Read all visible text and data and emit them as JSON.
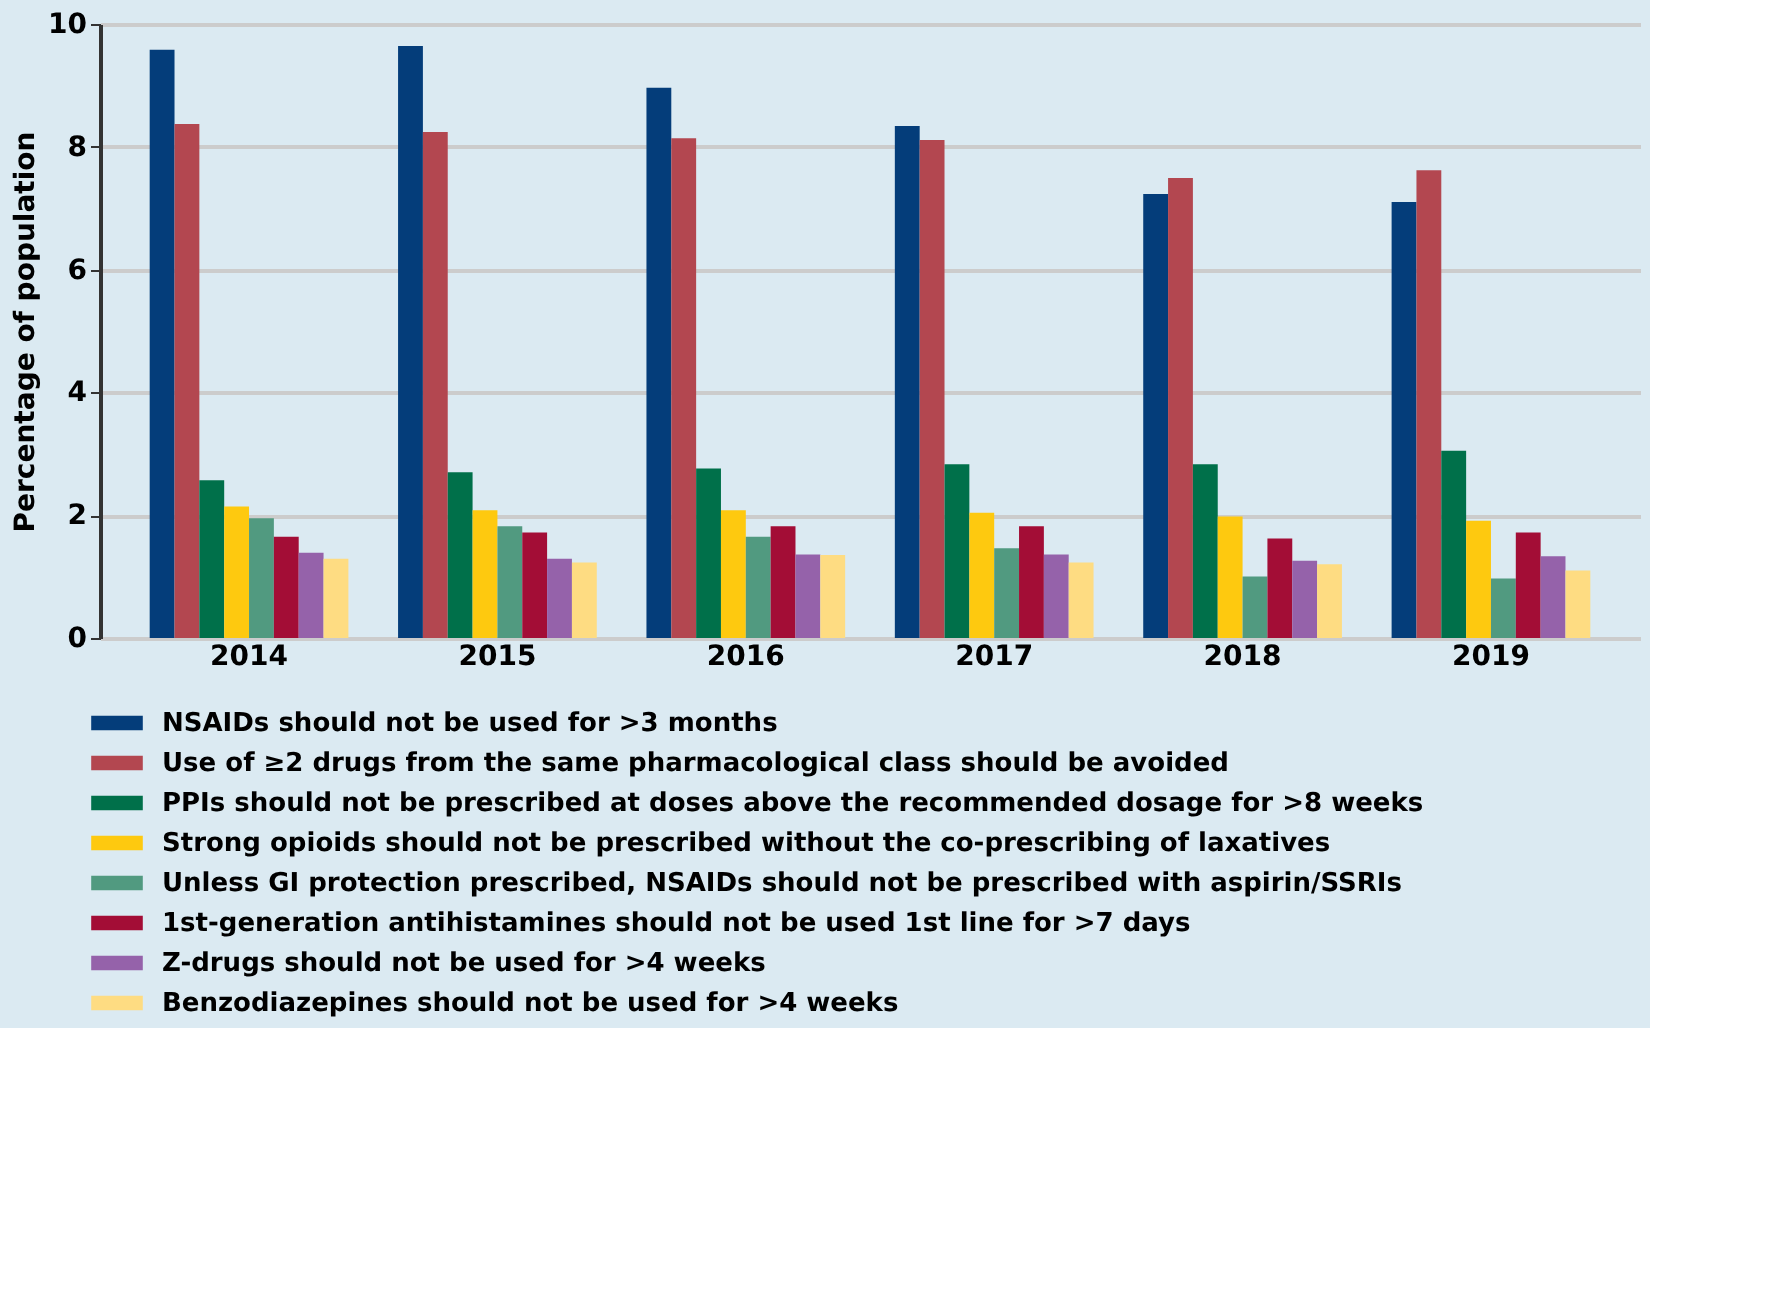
{
  "chart_data": {
    "type": "bar",
    "ylabel": "Percentage of population",
    "categories": [
      "2014",
      "2015",
      "2016",
      "2017",
      "2018",
      "2019"
    ],
    "series": [
      {
        "name": "NSAIDs should not be used for >3 months",
        "color": "#043d7a",
        "values": [
          9.58,
          9.64,
          8.96,
          8.34,
          7.23,
          7.1
        ]
      },
      {
        "name": "Use of ≥2 drugs from the same pharmacological class should be avoided",
        "color": "#b34750",
        "values": [
          8.37,
          8.24,
          8.14,
          8.11,
          7.49,
          7.62
        ]
      },
      {
        "name": "PPIs should not be prescribed at doses above the recommended dosage for >8 weeks",
        "color": "#00704a",
        "values": [
          2.57,
          2.7,
          2.76,
          2.83,
          2.83,
          3.05
        ]
      },
      {
        "name": "Strong opioids should not be prescribed without the co-prescribing of laxatives",
        "color": "#fec90f",
        "values": [
          2.14,
          2.08,
          2.08,
          2.04,
          1.98,
          1.91
        ]
      },
      {
        "name": "Unless GI protection prescribed, NSAIDs should not be prescribed with aspirin/SSRIs",
        "color": "#519a80",
        "values": [
          1.95,
          1.82,
          1.65,
          1.46,
          1.0,
          0.97
        ]
      },
      {
        "name": "1st-generation antihistamines should not be used 1st line for >7 days",
        "color": "#a30d36",
        "values": [
          1.65,
          1.72,
          1.82,
          1.82,
          1.62,
          1.72
        ]
      },
      {
        "name": "Z-drugs should not be used for >4 weeks",
        "color": "#9562aa",
        "values": [
          1.39,
          1.29,
          1.36,
          1.36,
          1.26,
          1.33
        ]
      },
      {
        "name": "Benzodiazepines should not be used for >4 weeks",
        "color": "#fedc82",
        "values": [
          1.29,
          1.23,
          1.35,
          1.23,
          1.2,
          1.1
        ]
      }
    ],
    "ylim": [
      0,
      10
    ],
    "yticks": [
      0,
      2,
      4,
      6,
      8,
      10
    ],
    "grid": "y",
    "legend": "bottom"
  }
}
